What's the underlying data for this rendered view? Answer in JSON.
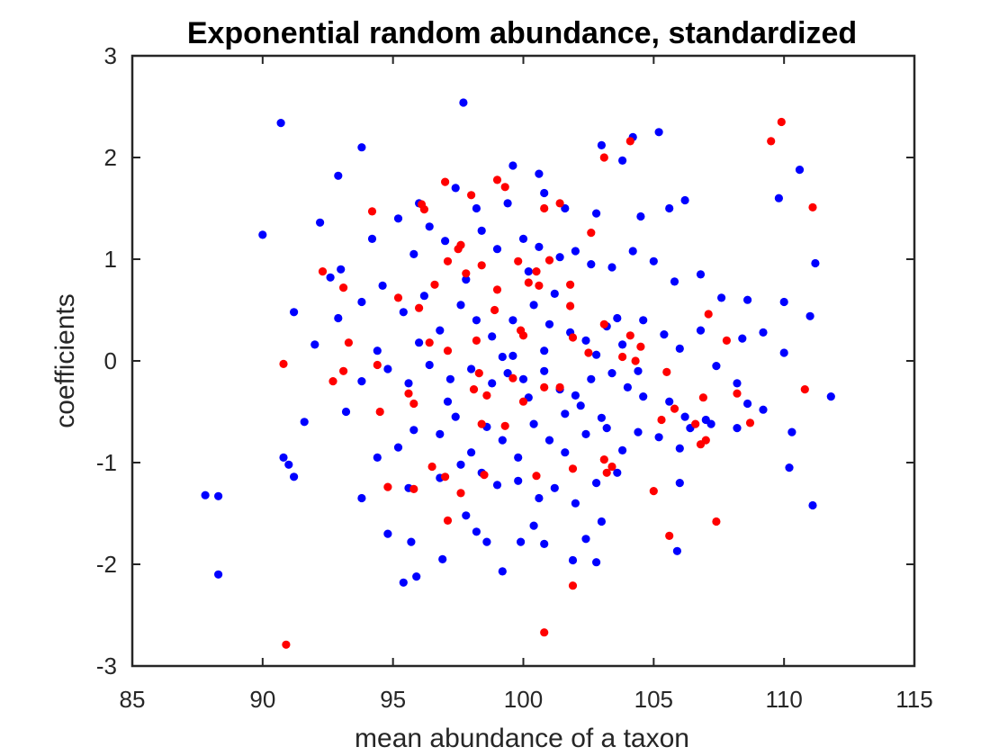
{
  "chart_data": {
    "type": "scatter",
    "title": "Exponential random abundance, standardized",
    "xlabel": "mean abundance of a taxon",
    "ylabel": "coefficients",
    "xlim": [
      85,
      115
    ],
    "ylim": [
      -3,
      3
    ],
    "xticks": [
      "85",
      "90",
      "95",
      "100",
      "105",
      "110",
      "115"
    ],
    "yticks": [
      "-3",
      "-2",
      "-1",
      "0",
      "1",
      "2",
      "3"
    ],
    "grid": false,
    "colors": {
      "blue": "#0000ff",
      "red": "#ff0000"
    },
    "series": [
      {
        "color": "#0000ff",
        "points": [
          [
            90.7,
            2.34
          ],
          [
            97.7,
            2.54
          ],
          [
            105.2,
            2.25
          ],
          [
            104.2,
            2.2
          ],
          [
            103.8,
            1.97
          ],
          [
            103.0,
            2.12
          ],
          [
            92.9,
            1.82
          ],
          [
            93.8,
            2.1
          ],
          [
            99.6,
            1.92
          ],
          [
            100.6,
            1.84
          ],
          [
            101.6,
            1.5
          ],
          [
            90.0,
            1.24
          ],
          [
            92.2,
            1.36
          ],
          [
            95.2,
            1.4
          ],
          [
            96.0,
            1.55
          ],
          [
            97.4,
            1.7
          ],
          [
            98.2,
            1.5
          ],
          [
            99.4,
            1.55
          ],
          [
            100.8,
            1.65
          ],
          [
            102.8,
            1.45
          ],
          [
            104.5,
            1.42
          ],
          [
            106.2,
            1.58
          ],
          [
            105.6,
            1.5
          ],
          [
            109.8,
            1.6
          ],
          [
            110.6,
            1.88
          ],
          [
            93.0,
            0.9
          ],
          [
            94.2,
            1.2
          ],
          [
            95.8,
            1.05
          ],
          [
            96.4,
            1.32
          ],
          [
            97.0,
            1.18
          ],
          [
            98.4,
            1.28
          ],
          [
            99.0,
            1.1
          ],
          [
            100.0,
            1.2
          ],
          [
            100.6,
            1.12
          ],
          [
            101.4,
            1.02
          ],
          [
            102.0,
            1.08
          ],
          [
            102.6,
            0.95
          ],
          [
            103.4,
            0.92
          ],
          [
            104.2,
            1.08
          ],
          [
            105.0,
            0.98
          ],
          [
            105.8,
            0.78
          ],
          [
            106.8,
            0.85
          ],
          [
            107.6,
            0.62
          ],
          [
            108.6,
            0.6
          ],
          [
            110.0,
            0.58
          ],
          [
            111.0,
            0.44
          ],
          [
            111.2,
            0.96
          ],
          [
            91.2,
            0.48
          ],
          [
            92.0,
            0.16
          ],
          [
            92.9,
            0.42
          ],
          [
            93.8,
            0.58
          ],
          [
            94.6,
            0.74
          ],
          [
            95.4,
            0.48
          ],
          [
            96.2,
            0.64
          ],
          [
            96.8,
            0.3
          ],
          [
            97.6,
            0.55
          ],
          [
            98.2,
            0.4
          ],
          [
            98.8,
            0.24
          ],
          [
            99.6,
            0.4
          ],
          [
            100.4,
            0.55
          ],
          [
            101.0,
            0.36
          ],
          [
            101.8,
            0.28
          ],
          [
            102.4,
            0.2
          ],
          [
            103.2,
            0.34
          ],
          [
            103.8,
            0.16
          ],
          [
            104.6,
            0.4
          ],
          [
            105.4,
            0.26
          ],
          [
            106.0,
            0.12
          ],
          [
            106.8,
            0.3
          ],
          [
            107.4,
            -0.05
          ],
          [
            108.4,
            0.22
          ],
          [
            109.2,
            0.28
          ],
          [
            110.0,
            0.08
          ],
          [
            93.8,
            -0.2
          ],
          [
            94.8,
            -0.08
          ],
          [
            95.6,
            -0.22
          ],
          [
            96.4,
            -0.04
          ],
          [
            97.2,
            -0.18
          ],
          [
            98.0,
            -0.08
          ],
          [
            98.8,
            -0.22
          ],
          [
            99.4,
            -0.12
          ],
          [
            100.0,
            -0.18
          ],
          [
            100.8,
            -0.1
          ],
          [
            101.4,
            -0.28
          ],
          [
            102.0,
            -0.34
          ],
          [
            102.6,
            -0.18
          ],
          [
            103.4,
            -0.12
          ],
          [
            104.0,
            -0.26
          ],
          [
            104.6,
            -0.35
          ],
          [
            105.6,
            -0.4
          ],
          [
            106.2,
            -0.55
          ],
          [
            107.0,
            -0.58
          ],
          [
            108.2,
            -0.22
          ],
          [
            108.6,
            -0.42
          ],
          [
            109.2,
            -0.48
          ],
          [
            111.8,
            -0.35
          ],
          [
            91.6,
            -0.6
          ],
          [
            93.2,
            -0.5
          ],
          [
            94.4,
            -0.95
          ],
          [
            95.2,
            -0.85
          ],
          [
            95.8,
            -0.68
          ],
          [
            96.8,
            -0.72
          ],
          [
            97.4,
            -0.55
          ],
          [
            98.0,
            -0.9
          ],
          [
            98.6,
            -0.65
          ],
          [
            99.2,
            -0.78
          ],
          [
            99.8,
            -0.95
          ],
          [
            100.4,
            -0.62
          ],
          [
            101.0,
            -0.78
          ],
          [
            101.6,
            -0.9
          ],
          [
            102.4,
            -0.72
          ],
          [
            103.2,
            -0.66
          ],
          [
            103.8,
            -0.88
          ],
          [
            104.4,
            -0.7
          ],
          [
            105.2,
            -0.75
          ],
          [
            106.0,
            -0.86
          ],
          [
            106.4,
            -0.66
          ],
          [
            107.2,
            -0.62
          ],
          [
            108.2,
            -0.66
          ],
          [
            90.8,
            -0.95
          ],
          [
            91.0,
            -1.02
          ],
          [
            91.2,
            -1.14
          ],
          [
            93.8,
            -1.35
          ],
          [
            95.6,
            -1.25
          ],
          [
            96.8,
            -1.15
          ],
          [
            97.6,
            -1.02
          ],
          [
            98.4,
            -1.1
          ],
          [
            99.0,
            -1.22
          ],
          [
            99.8,
            -1.18
          ],
          [
            100.6,
            -1.35
          ],
          [
            101.2,
            -1.25
          ],
          [
            102.0,
            -1.4
          ],
          [
            102.8,
            -1.2
          ],
          [
            103.6,
            -1.1
          ],
          [
            106.0,
            -1.2
          ],
          [
            110.2,
            -1.05
          ],
          [
            111.1,
            -1.42
          ],
          [
            110.3,
            -0.7
          ],
          [
            87.8,
            -1.32
          ],
          [
            88.3,
            -1.33
          ],
          [
            88.3,
            -2.1
          ],
          [
            94.8,
            -1.7
          ],
          [
            95.4,
            -2.18
          ],
          [
            95.7,
            -1.78
          ],
          [
            95.9,
            -2.12
          ],
          [
            96.9,
            -1.95
          ],
          [
            97.8,
            -1.52
          ],
          [
            98.2,
            -1.68
          ],
          [
            98.6,
            -1.78
          ],
          [
            99.2,
            -2.07
          ],
          [
            99.9,
            -1.78
          ],
          [
            100.4,
            -1.62
          ],
          [
            100.8,
            -1.8
          ],
          [
            101.9,
            -1.96
          ],
          [
            102.4,
            -1.75
          ],
          [
            102.8,
            -1.98
          ],
          [
            103.0,
            -1.58
          ],
          [
            105.9,
            -1.87
          ],
          [
            97.1,
            -0.4
          ],
          [
            99.6,
            0.05
          ],
          [
            100.2,
            -0.36
          ],
          [
            101.6,
            -0.52
          ],
          [
            102.2,
            -0.44
          ],
          [
            103.0,
            -0.56
          ],
          [
            104.4,
            -0.1
          ],
          [
            97.8,
            0.8
          ],
          [
            100.2,
            0.88
          ],
          [
            101.2,
            0.66
          ],
          [
            99.2,
            0.04
          ],
          [
            100.8,
            0.1
          ],
          [
            102.8,
            0.06
          ],
          [
            103.6,
            0.42
          ],
          [
            96.0,
            0.18
          ],
          [
            94.4,
            0.1
          ],
          [
            92.6,
            0.82
          ]
        ]
      },
      {
        "color": "#ff0000",
        "points": [
          [
            109.9,
            2.35
          ],
          [
            109.5,
            2.16
          ],
          [
            103.1,
            2.0
          ],
          [
            104.1,
            2.16
          ],
          [
            111.1,
            1.51
          ],
          [
            97.0,
            1.76
          ],
          [
            98.0,
            1.63
          ],
          [
            99.0,
            1.78
          ],
          [
            99.3,
            1.71
          ],
          [
            96.1,
            1.54
          ],
          [
            96.2,
            1.49
          ],
          [
            101.4,
            1.55
          ],
          [
            100.8,
            1.5
          ],
          [
            102.6,
            1.26
          ],
          [
            94.2,
            1.47
          ],
          [
            97.6,
            1.14
          ],
          [
            97.5,
            1.1
          ],
          [
            92.3,
            0.88
          ],
          [
            93.1,
            0.72
          ],
          [
            95.2,
            0.62
          ],
          [
            96.6,
            0.75
          ],
          [
            97.1,
            0.98
          ],
          [
            97.8,
            0.86
          ],
          [
            98.4,
            0.94
          ],
          [
            99.0,
            0.7
          ],
          [
            99.8,
            0.98
          ],
          [
            100.2,
            0.77
          ],
          [
            100.6,
            0.74
          ],
          [
            101.0,
            0.99
          ],
          [
            101.8,
            0.75
          ],
          [
            101.8,
            0.54
          ],
          [
            100.5,
            0.88
          ],
          [
            98.9,
            0.5
          ],
          [
            99.9,
            0.3
          ],
          [
            100.0,
            0.25
          ],
          [
            96.0,
            0.52
          ],
          [
            96.4,
            0.18
          ],
          [
            98.2,
            0.2
          ],
          [
            93.3,
            0.18
          ],
          [
            94.4,
            -0.04
          ],
          [
            90.8,
            -0.03
          ],
          [
            92.7,
            -0.2
          ],
          [
            93.1,
            -0.1
          ],
          [
            94.5,
            -0.5
          ],
          [
            95.6,
            -0.32
          ],
          [
            95.8,
            -0.42
          ],
          [
            97.1,
            0.1
          ],
          [
            98.1,
            -0.28
          ],
          [
            98.3,
            -0.12
          ],
          [
            98.6,
            -0.34
          ],
          [
            99.6,
            -0.17
          ],
          [
            100.0,
            -0.4
          ],
          [
            100.8,
            -0.26
          ],
          [
            101.4,
            -0.26
          ],
          [
            101.9,
            0.23
          ],
          [
            102.5,
            0.08
          ],
          [
            103.1,
            0.36
          ],
          [
            103.8,
            0.04
          ],
          [
            104.1,
            0.25
          ],
          [
            104.3,
            0.0
          ],
          [
            104.5,
            0.14
          ],
          [
            105.5,
            -0.11
          ],
          [
            105.3,
            -0.58
          ],
          [
            105.8,
            -0.47
          ],
          [
            106.9,
            -0.36
          ],
          [
            106.6,
            -0.62
          ],
          [
            106.8,
            -0.82
          ],
          [
            107.0,
            -0.78
          ],
          [
            107.1,
            0.46
          ],
          [
            107.8,
            0.2
          ],
          [
            108.2,
            -0.32
          ],
          [
            108.7,
            -0.61
          ],
          [
            110.8,
            -0.28
          ],
          [
            94.8,
            -1.24
          ],
          [
            95.8,
            -1.26
          ],
          [
            96.5,
            -1.04
          ],
          [
            97.0,
            -1.14
          ],
          [
            97.1,
            -1.57
          ],
          [
            97.6,
            -1.3
          ],
          [
            98.5,
            -1.12
          ],
          [
            98.4,
            -0.62
          ],
          [
            99.3,
            -0.64
          ],
          [
            100.5,
            -1.13
          ],
          [
            101.9,
            -1.06
          ],
          [
            103.1,
            -0.97
          ],
          [
            103.2,
            -1.1
          ],
          [
            103.4,
            -1.04
          ],
          [
            105.0,
            -1.28
          ],
          [
            105.6,
            -1.72
          ],
          [
            107.4,
            -1.58
          ],
          [
            101.9,
            -2.21
          ],
          [
            100.8,
            -2.67
          ],
          [
            90.9,
            -2.79
          ]
        ]
      }
    ]
  }
}
